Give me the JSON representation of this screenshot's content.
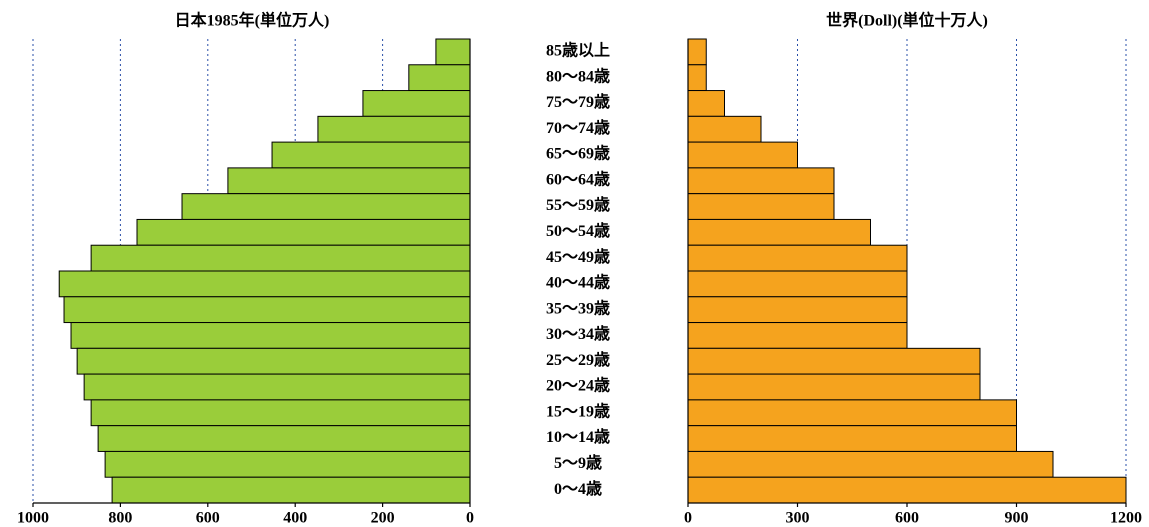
{
  "chart_data": [
    {
      "type": "bar",
      "orientation": "horizontal",
      "title": "日本1985年(単位万人)",
      "categories": [
        "85歳以上",
        "80〜84歳",
        "75〜79歳",
        "70〜74歳",
        "65〜69歳",
        "60〜64歳",
        "55〜59歳",
        "50〜54歳",
        "45〜49歳",
        "40〜44歳",
        "35〜39歳",
        "30〜34歳",
        "25〜29歳",
        "20〜24歳",
        "15〜19歳",
        "10〜14歳",
        "5〜9歳",
        "0〜4歳"
      ],
      "values": [
        78,
        140,
        245,
        348,
        453,
        554,
        659,
        762,
        867,
        940,
        929,
        913,
        899,
        883,
        867,
        851,
        835,
        819
      ],
      "color": "#9acd3a",
      "xlim": [
        1000,
        0
      ],
      "xticks": [
        1000,
        800,
        600,
        400,
        200,
        0
      ],
      "grid": true
    },
    {
      "type": "bar",
      "orientation": "horizontal",
      "title": "世界(Doll)(単位十万人)",
      "values": [
        50,
        50,
        100,
        200,
        300,
        400,
        400,
        500,
        600,
        600,
        600,
        600,
        800,
        800,
        900,
        900,
        1000,
        1200
      ],
      "color": "#f5a31e",
      "xlim": [
        0,
        1200
      ],
      "xticks": [
        0,
        300,
        600,
        900,
        1200
      ],
      "grid": true
    }
  ]
}
